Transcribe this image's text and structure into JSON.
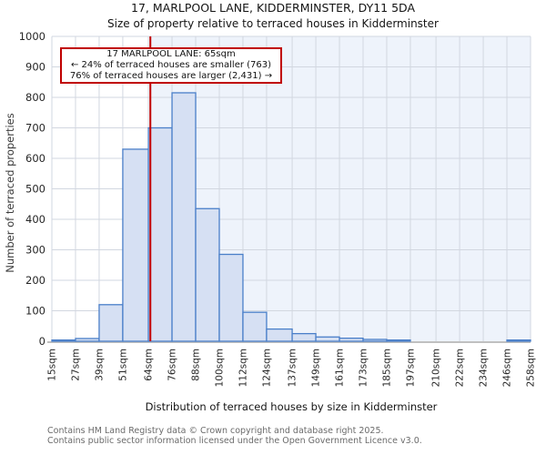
{
  "annotation": {
    "line1": "17 MARLPOOL LANE: 65sqm",
    "line2": "← 24% of terraced houses are smaller (763)",
    "line3": "76% of terraced houses are larger (2,431) →"
  },
  "footer": {
    "line1": "Contains HM Land Registry data © Crown copyright and database right 2025.",
    "line2": "Contains public sector information licensed under the Open Government Licence v3.0."
  },
  "chart_data": {
    "type": "bar",
    "title": "17, MARLPOOL LANE, KIDDERMINSTER, DY11 5DA",
    "subtitle": "Size of property relative to terraced houses in Kidderminster",
    "xlabel": "Distribution of terraced houses by size in Kidderminster",
    "ylabel": "Number of terraced properties",
    "bin_edges_sqm": [
      15,
      27,
      39,
      51,
      64,
      76,
      88,
      100,
      112,
      124,
      137,
      149,
      161,
      173,
      185,
      197,
      210,
      222,
      234,
      246,
      258
    ],
    "x_tick_labels": [
      "15sqm",
      "27sqm",
      "39sqm",
      "51sqm",
      "64sqm",
      "76sqm",
      "88sqm",
      "100sqm",
      "112sqm",
      "124sqm",
      "137sqm",
      "149sqm",
      "161sqm",
      "173sqm",
      "185sqm",
      "197sqm",
      "210sqm",
      "222sqm",
      "234sqm",
      "246sqm",
      "258sqm"
    ],
    "values": [
      4,
      9,
      120,
      630,
      700,
      815,
      435,
      285,
      95,
      40,
      25,
      14,
      10,
      6,
      4,
      0,
      0,
      0,
      0,
      4
    ],
    "ylim": [
      0,
      1000
    ],
    "y_ticks": [
      0,
      100,
      200,
      300,
      400,
      500,
      600,
      700,
      800,
      900,
      1000
    ],
    "grid": true,
    "marker_value_sqm": 65,
    "shade_larger_region": true,
    "colors": {
      "bar_fill": "#d6e0f3",
      "bar_border": "#4a7fc9",
      "marker_line": "#c00000",
      "shade_region": "#eef3fb",
      "gridline": "#d2d7e0",
      "axis_line": "#c0c0c0",
      "annotation_border": "#c00000",
      "tick_text": "#262626",
      "footer_text": "#6b6b6b"
    }
  }
}
